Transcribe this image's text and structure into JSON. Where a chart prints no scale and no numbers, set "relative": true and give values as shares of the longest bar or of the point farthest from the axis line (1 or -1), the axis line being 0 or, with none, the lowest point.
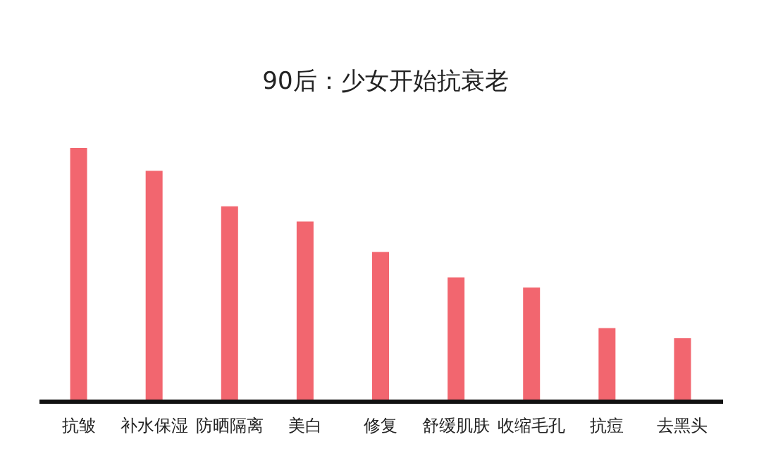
{
  "chart_data": {
    "type": "bar",
    "title": "90后：少女开始抗衰老",
    "relative": true,
    "categories": [
      "抗皱",
      "补水保湿",
      "防晒隔离",
      "美白",
      "修复",
      "舒缓肌肤",
      "收缩毛孔",
      "抗痘",
      "去黑头"
    ],
    "values": [
      1,
      0.91,
      0.77,
      0.71,
      0.59,
      0.49,
      0.45,
      0.29,
      0.25
    ],
    "color": "#f2666f"
  }
}
